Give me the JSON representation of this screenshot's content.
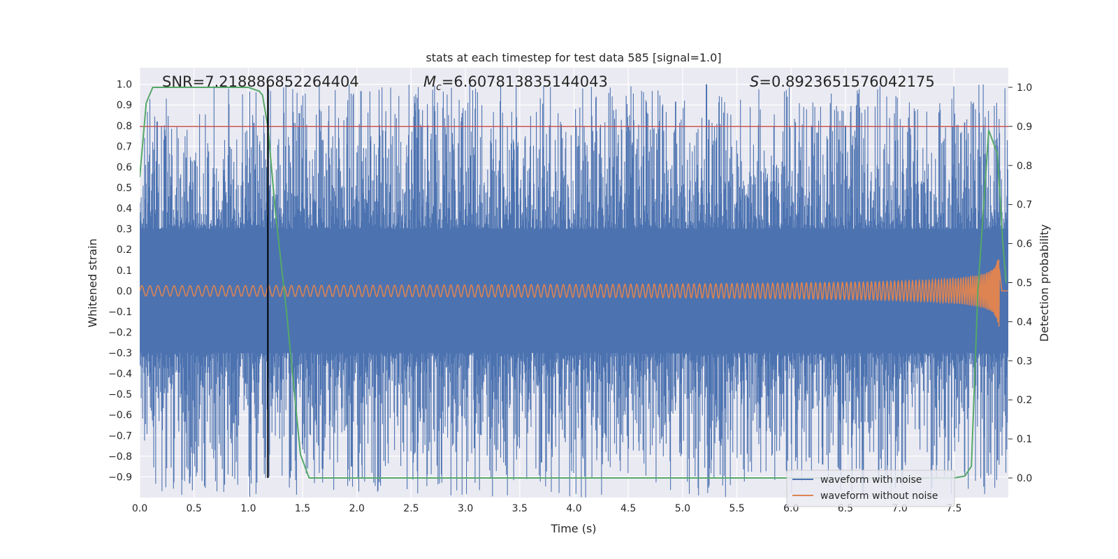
{
  "chart_data": {
    "type": "line",
    "title": "stats at each timestep for test data 585 [signal=1.0]",
    "xlabel": "Time (s)",
    "ylabel_left": "Whitened strain",
    "ylabel_right": "Detection probability",
    "xlim": [
      0.0,
      8.0
    ],
    "ylim_left": [
      -1.0,
      1.08
    ],
    "ylim_right": [
      -0.05,
      1.05
    ],
    "x_ticks": [
      "0.0",
      "0.5",
      "1.0",
      "1.5",
      "2.0",
      "2.5",
      "3.0",
      "3.5",
      "4.0",
      "4.5",
      "5.0",
      "5.5",
      "6.0",
      "6.5",
      "7.0",
      "7.5"
    ],
    "x_tick_values": [
      0.0,
      0.5,
      1.0,
      1.5,
      2.0,
      2.5,
      3.0,
      3.5,
      4.0,
      4.5,
      5.0,
      5.5,
      6.0,
      6.5,
      7.0,
      7.5
    ],
    "y_ticks_left": [
      "1.0",
      "0.9",
      "0.8",
      "0.7",
      "0.6",
      "0.5",
      "0.4",
      "0.3",
      "0.2",
      "0.1",
      "0.0",
      "−0.1",
      "−0.2",
      "−0.3",
      "−0.4",
      "−0.5",
      "−0.6",
      "−0.7",
      "−0.8",
      "−0.9"
    ],
    "y_tick_values_left": [
      1.0,
      0.9,
      0.8,
      0.7,
      0.6,
      0.5,
      0.4,
      0.3,
      0.2,
      0.1,
      0.0,
      -0.1,
      -0.2,
      -0.3,
      -0.4,
      -0.5,
      -0.6,
      -0.7,
      -0.8,
      -0.9
    ],
    "y_ticks_right": [
      "1.0",
      "0.9",
      "0.8",
      "0.7",
      "0.6",
      "0.5",
      "0.4",
      "0.3",
      "0.2",
      "0.1",
      "0.0"
    ],
    "y_tick_values_right": [
      1.0,
      0.9,
      0.8,
      0.7,
      0.6,
      0.5,
      0.4,
      0.3,
      0.2,
      0.1,
      0.0
    ],
    "annotations": {
      "snr": "SNR=7.218886852264404",
      "mc_symbol": "M",
      "mc_sub": "c",
      "mc_value": "=6.607813835144043",
      "s_symbol": "S",
      "s_value": "=0.8923651576042175"
    },
    "threshold_right": 0.9,
    "vertical_marker_x": 1.18,
    "noise_envelope_min": [
      -1.0,
      -0.3
    ],
    "noise_envelope_max": [
      0.3,
      1.0
    ],
    "noise_spikes": [
      {
        "x": 0.16,
        "y": 0.82
      },
      {
        "x": 0.24,
        "y": 0.75
      },
      {
        "x": 1.47,
        "y": 0.86
      },
      {
        "x": 5.22,
        "y": 1.0
      },
      {
        "x": 6.19,
        "y": 0.8
      },
      {
        "x": 6.5,
        "y": 0.8
      },
      {
        "x": 7.9,
        "y": -0.82
      },
      {
        "x": 6.29,
        "y": -0.84
      },
      {
        "x": 1.95,
        "y": -0.85
      },
      {
        "x": 3.7,
        "y": -0.83
      }
    ],
    "signal_chirp": {
      "t_merge": 7.92,
      "amp_start": 0.025,
      "amp_peak_pos": 0.25,
      "amp_peak_neg": -0.19
    },
    "detection_probability": {
      "x": [
        0.0,
        0.06,
        0.12,
        0.2,
        0.4,
        0.7,
        1.0,
        1.1,
        1.13,
        1.18,
        1.25,
        1.35,
        1.48,
        1.56,
        1.62,
        2.0,
        3.0,
        4.0,
        5.0,
        6.0,
        7.0,
        7.5,
        7.6,
        7.66,
        7.72,
        7.82,
        7.9,
        7.95,
        7.98
      ],
      "y": [
        0.77,
        0.96,
        1.0,
        1.0,
        1.0,
        1.0,
        1.0,
        0.99,
        0.98,
        0.9,
        0.68,
        0.43,
        0.06,
        0.0,
        0.0,
        0.0,
        0.0,
        0.0,
        0.0,
        0.0,
        0.0,
        0.0,
        0.005,
        0.03,
        0.48,
        0.89,
        0.83,
        0.6,
        0.5
      ]
    },
    "series": [
      {
        "name": "waveform with noise",
        "color": "#4c72b0"
      },
      {
        "name": "waveform without noise",
        "color": "#dd8452"
      },
      {
        "color": "#55a868"
      },
      {
        "color": "#c44e52"
      }
    ],
    "legend_position": "lower-right",
    "grid": true,
    "background_color": "#eaeaf2"
  }
}
